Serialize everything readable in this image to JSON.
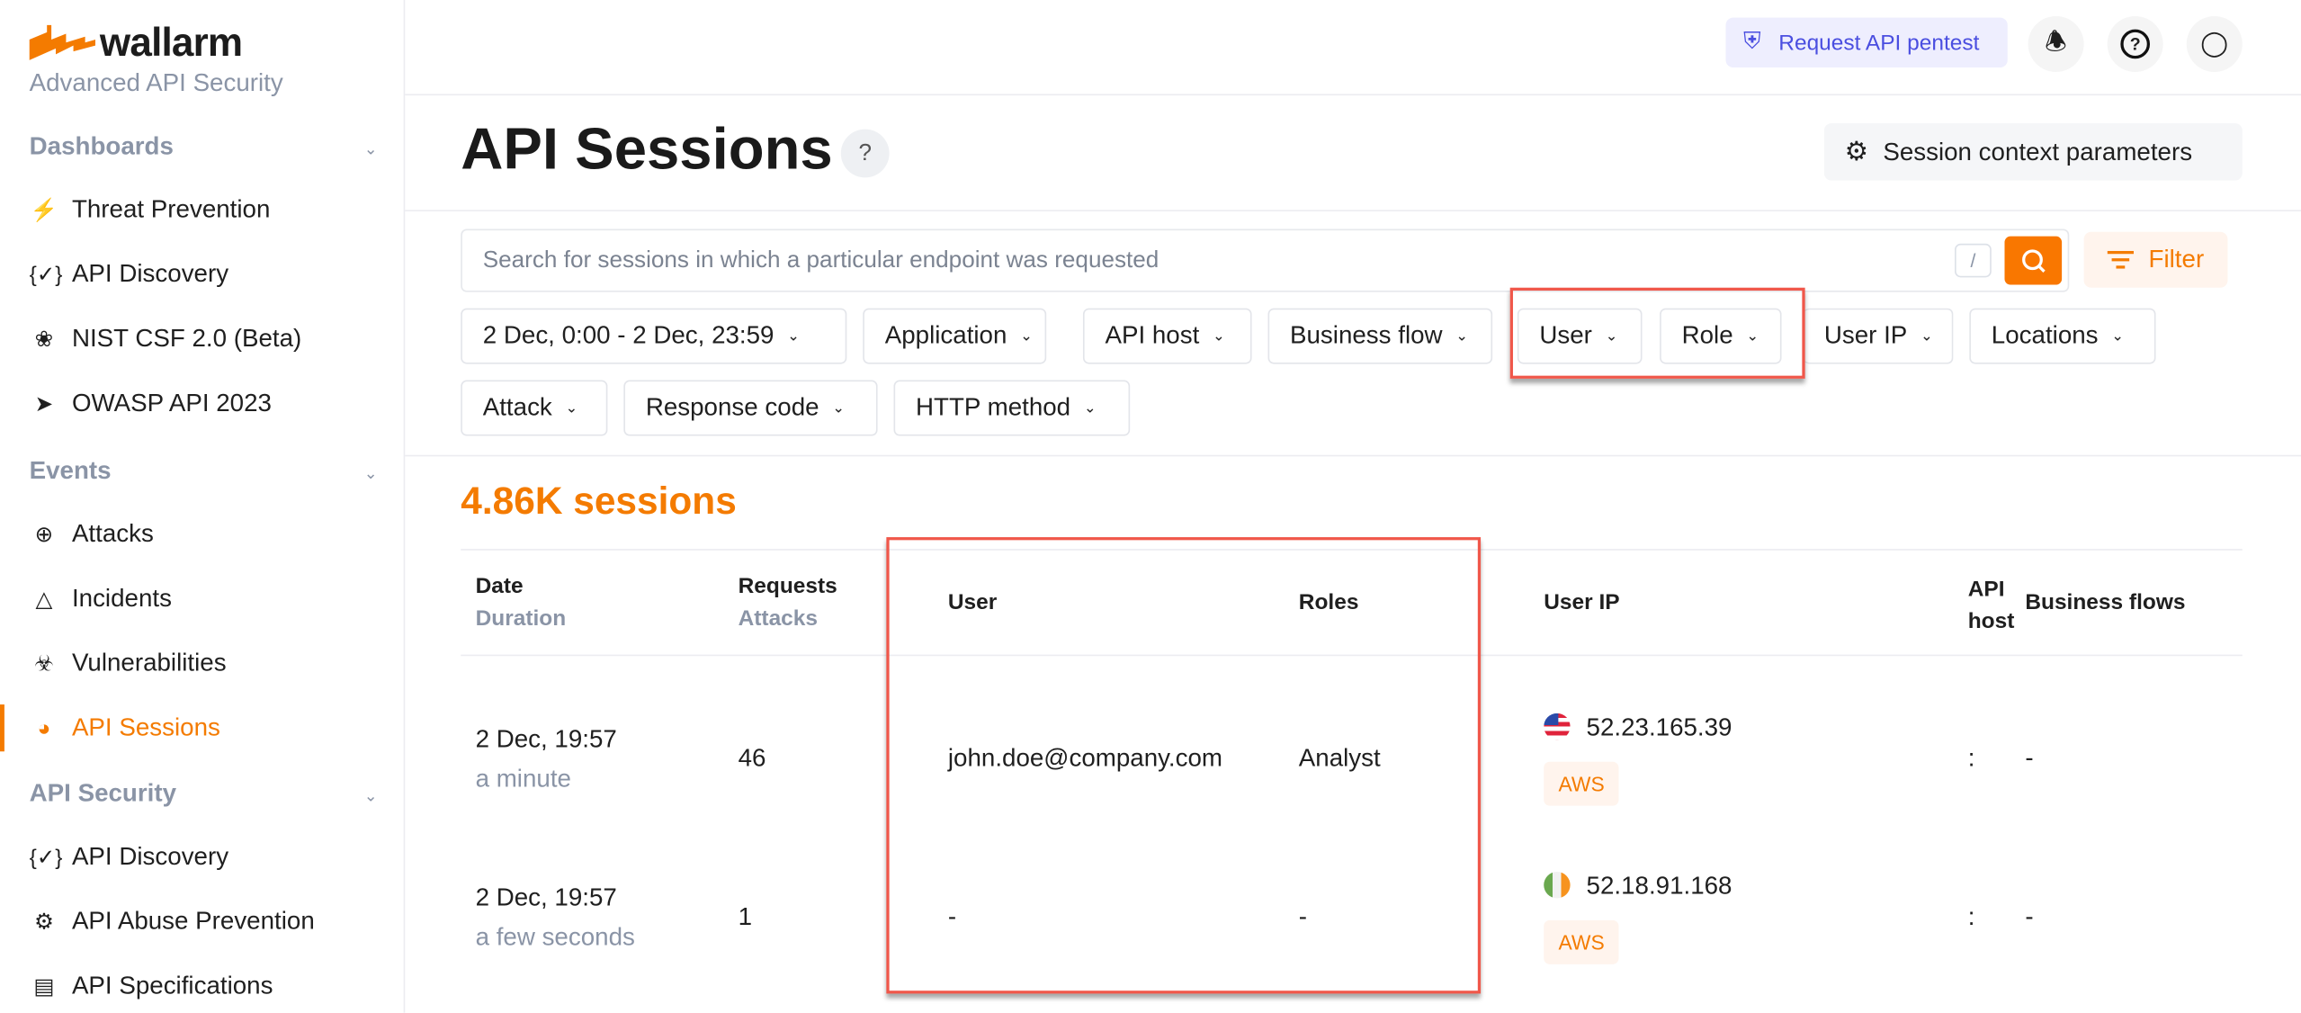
{
  "brand": {
    "name": "wallarm",
    "tagline": "Advanced API Security",
    "accent": "#f47b00"
  },
  "sidebar": {
    "sections": [
      {
        "label": "Dashboards",
        "items": [
          {
            "label": "Threat Prevention",
            "icon": "shield-bolt-icon"
          },
          {
            "label": "API Discovery",
            "icon": "braces-check-icon"
          },
          {
            "label": "NIST CSF 2.0 (Beta)",
            "icon": "nist-icon"
          },
          {
            "label": "OWASP API 2023",
            "icon": "owasp-icon"
          }
        ]
      },
      {
        "label": "Events",
        "items": [
          {
            "label": "Attacks",
            "icon": "target-icon"
          },
          {
            "label": "Incidents",
            "icon": "warning-icon"
          },
          {
            "label": "Vulnerabilities",
            "icon": "biohazard-icon"
          },
          {
            "label": "API Sessions",
            "icon": "fingerprint-icon",
            "active": true
          }
        ]
      },
      {
        "label": "API Security",
        "items": [
          {
            "label": "API Discovery",
            "icon": "braces-check-icon"
          },
          {
            "label": "API Abuse Prevention",
            "icon": "bot-icon"
          },
          {
            "label": "API Specifications",
            "icon": "document-icon"
          }
        ]
      }
    ]
  },
  "topbar": {
    "pentest_label": "Request API pentest"
  },
  "page": {
    "title": "API Sessions",
    "context_button": "Session context parameters"
  },
  "search": {
    "placeholder": "Search for sessions in which a particular endpoint was requested",
    "shortcut": "/",
    "filter_label": "Filter"
  },
  "filters": [
    "2 Dec, 0:00 - 2 Dec, 23:59",
    "Application",
    "API host",
    "Business flow",
    "User",
    "Role",
    "User IP",
    "Locations",
    "Attack",
    "Response code",
    "HTTP method"
  ],
  "summary": {
    "count": "4.86K sessions"
  },
  "table": {
    "headers": {
      "date": "Date",
      "duration": "Duration",
      "requests": "Requests",
      "attacks": "Attacks",
      "user": "User",
      "roles": "Roles",
      "user_ip": "User IP",
      "api_host": "API host",
      "business_flows": "Business flows"
    },
    "rows": [
      {
        "date": "2 Dec, 19:57",
        "duration": "a minute",
        "requests": "46",
        "user": "john.doe@company.com",
        "roles": "Analyst",
        "ip": "52.23.165.39",
        "country": "us",
        "provider": "AWS",
        "api_host": ":",
        "business_flows": "-"
      },
      {
        "date": "2 Dec, 19:57",
        "duration": "a few seconds",
        "requests": "1",
        "user": "-",
        "roles": "-",
        "ip": "52.18.91.168",
        "country": "ie",
        "provider": "AWS",
        "api_host": ":",
        "business_flows": "-"
      }
    ]
  }
}
